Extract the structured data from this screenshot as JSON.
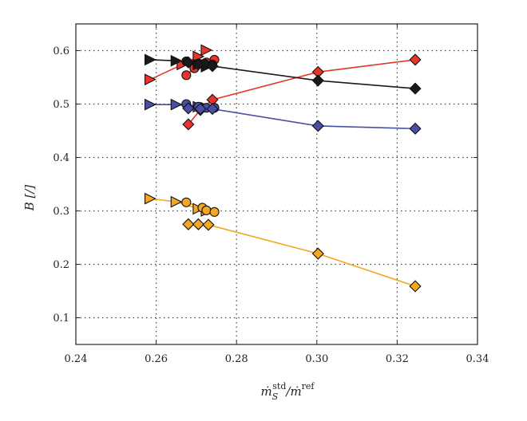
{
  "chart_data": {
    "type": "line",
    "xlabel": "",
    "ylabel": "B [/]",
    "xlim": [
      0.24,
      0.34
    ],
    "ylim": [
      0.05,
      0.65
    ],
    "xticks": [
      "0.24",
      "0.26",
      "0.28",
      "0.30",
      "0.32",
      "0.34"
    ],
    "yticks": [
      "0.1",
      "0.2",
      "0.3",
      "0.4",
      "0.5",
      "0.6"
    ],
    "grid": true,
    "colors": {
      "red": "#e8352c",
      "black": "#1a1a1a",
      "blue": "#4a4fa6",
      "orange": "#f5a623"
    },
    "series": [
      {
        "color": "#e8352c",
        "marker": "triangle-right",
        "points": [
          [
            0.2585,
            0.546
          ],
          [
            0.2665,
            0.574
          ],
          [
            0.2705,
            0.589
          ],
          [
            0.2725,
            0.601
          ]
        ]
      },
      {
        "color": "#e8352c",
        "marker": "circle",
        "points": [
          [
            0.2675,
            0.554
          ],
          [
            0.2695,
            0.567
          ],
          [
            0.2725,
            0.578
          ],
          [
            0.2745,
            0.583
          ]
        ]
      },
      {
        "color": "#e8352c",
        "marker": "diamond",
        "points": [
          [
            0.268,
            0.462
          ],
          [
            0.271,
            0.489
          ],
          [
            0.274,
            0.508
          ],
          [
            0.3003,
            0.56
          ],
          [
            0.3245,
            0.583
          ]
        ]
      },
      {
        "color": "#1a1a1a",
        "marker": "triangle-right",
        "points": [
          [
            0.2585,
            0.583
          ],
          [
            0.265,
            0.581
          ],
          [
            0.2705,
            0.574
          ],
          [
            0.2725,
            0.57
          ]
        ]
      },
      {
        "color": "#1a1a1a",
        "marker": "circle",
        "points": [
          [
            0.2675,
            0.58
          ],
          [
            0.2705,
            0.576
          ],
          [
            0.272,
            0.576
          ],
          [
            0.274,
            0.574
          ]
        ]
      },
      {
        "color": "#1a1a1a",
        "marker": "diamond",
        "points": [
          [
            0.268,
            0.578
          ],
          [
            0.2705,
            0.574
          ],
          [
            0.274,
            0.571
          ],
          [
            0.3003,
            0.544
          ],
          [
            0.3245,
            0.529
          ]
        ]
      },
      {
        "color": "#4a4fa6",
        "marker": "triangle-right",
        "points": [
          [
            0.2585,
            0.499
          ],
          [
            0.265,
            0.499
          ],
          [
            0.2705,
            0.495
          ],
          [
            0.2725,
            0.493
          ]
        ]
      },
      {
        "color": "#4a4fa6",
        "marker": "circle",
        "points": [
          [
            0.2675,
            0.5
          ],
          [
            0.2705,
            0.495
          ],
          [
            0.2725,
            0.493
          ],
          [
            0.2745,
            0.493
          ]
        ]
      },
      {
        "color": "#4a4fa6",
        "marker": "diamond",
        "points": [
          [
            0.268,
            0.492
          ],
          [
            0.271,
            0.491
          ],
          [
            0.274,
            0.491
          ],
          [
            0.3003,
            0.459
          ],
          [
            0.3245,
            0.454
          ]
        ]
      },
      {
        "color": "#f5a623",
        "marker": "triangle-right",
        "points": [
          [
            0.2585,
            0.323
          ],
          [
            0.265,
            0.317
          ],
          [
            0.2705,
            0.304
          ],
          [
            0.2725,
            0.3
          ]
        ]
      },
      {
        "color": "#f5a623",
        "marker": "circle",
        "points": [
          [
            0.2675,
            0.316
          ],
          [
            0.2715,
            0.306
          ],
          [
            0.2725,
            0.301
          ],
          [
            0.2745,
            0.298
          ]
        ]
      },
      {
        "color": "#f5a623",
        "marker": "diamond",
        "points": [
          [
            0.268,
            0.275
          ],
          [
            0.2705,
            0.275
          ],
          [
            0.273,
            0.274
          ],
          [
            0.3003,
            0.22
          ],
          [
            0.3245,
            0.159
          ]
        ]
      }
    ]
  }
}
